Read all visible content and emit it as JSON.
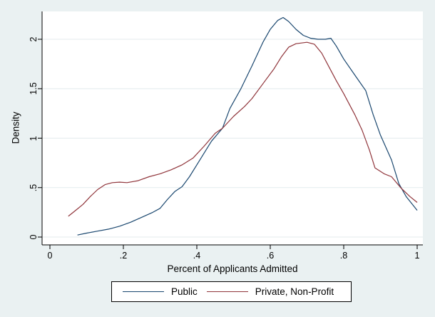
{
  "colors": {
    "background": "#eaf1f2",
    "plot_background": "#ffffff",
    "gridline": "#e3ebee",
    "axis": "#000000",
    "text": "#000000",
    "public_line": "#1a476f",
    "private_line": "#90353b"
  },
  "chart_data": {
    "type": "line",
    "title": "",
    "xlabel": "Percent of Applicants Admitted",
    "ylabel": "Density",
    "xlim": [
      0,
      1
    ],
    "ylim": [
      0,
      2.2
    ],
    "grid": true,
    "legend_position": "bottom",
    "x_ticks": [
      {
        "label": "0",
        "value": 0.0
      },
      {
        "label": ".2",
        "value": 0.2
      },
      {
        "label": ".4",
        "value": 0.4
      },
      {
        "label": ".6",
        "value": 0.6
      },
      {
        "label": ".8",
        "value": 0.8
      },
      {
        "label": "1",
        "value": 1.0
      }
    ],
    "y_ticks": [
      {
        "label": "0",
        "value": 0.0
      },
      {
        "label": ".5",
        "value": 0.5
      },
      {
        "label": "1",
        "value": 1.0
      },
      {
        "label": "1.5",
        "value": 1.5
      },
      {
        "label": "2",
        "value": 2.0
      }
    ],
    "series": [
      {
        "name": "Public",
        "color_key": "public_line",
        "points": [
          [
            0.075,
            0.02
          ],
          [
            0.1,
            0.04
          ],
          [
            0.13,
            0.06
          ],
          [
            0.16,
            0.08
          ],
          [
            0.19,
            0.11
          ],
          [
            0.22,
            0.15
          ],
          [
            0.25,
            0.2
          ],
          [
            0.28,
            0.25
          ],
          [
            0.3,
            0.29
          ],
          [
            0.32,
            0.38
          ],
          [
            0.34,
            0.46
          ],
          [
            0.36,
            0.51
          ],
          [
            0.38,
            0.61
          ],
          [
            0.4,
            0.73
          ],
          [
            0.42,
            0.85
          ],
          [
            0.44,
            0.97
          ],
          [
            0.47,
            1.1
          ],
          [
            0.49,
            1.3
          ],
          [
            0.52,
            1.5
          ],
          [
            0.55,
            1.73
          ],
          [
            0.58,
            1.97
          ],
          [
            0.6,
            2.1
          ],
          [
            0.62,
            2.19
          ],
          [
            0.635,
            2.22
          ],
          [
            0.65,
            2.18
          ],
          [
            0.67,
            2.1
          ],
          [
            0.69,
            2.04
          ],
          [
            0.71,
            2.01
          ],
          [
            0.73,
            2.0
          ],
          [
            0.75,
            2.0
          ],
          [
            0.765,
            2.01
          ],
          [
            0.78,
            1.93
          ],
          [
            0.8,
            1.8
          ],
          [
            0.83,
            1.64
          ],
          [
            0.86,
            1.48
          ],
          [
            0.88,
            1.24
          ],
          [
            0.9,
            1.03
          ],
          [
            0.93,
            0.78
          ],
          [
            0.95,
            0.54
          ],
          [
            0.97,
            0.41
          ],
          [
            1.0,
            0.27
          ]
        ]
      },
      {
        "name": "Private, Non-Profit",
        "color_key": "private_line",
        "points": [
          [
            0.05,
            0.21
          ],
          [
            0.07,
            0.27
          ],
          [
            0.09,
            0.33
          ],
          [
            0.11,
            0.41
          ],
          [
            0.13,
            0.48
          ],
          [
            0.15,
            0.53
          ],
          [
            0.17,
            0.55
          ],
          [
            0.19,
            0.555
          ],
          [
            0.21,
            0.55
          ],
          [
            0.24,
            0.57
          ],
          [
            0.27,
            0.61
          ],
          [
            0.3,
            0.64
          ],
          [
            0.33,
            0.68
          ],
          [
            0.36,
            0.73
          ],
          [
            0.39,
            0.8
          ],
          [
            0.42,
            0.92
          ],
          [
            0.45,
            1.05
          ],
          [
            0.47,
            1.1
          ],
          [
            0.5,
            1.22
          ],
          [
            0.53,
            1.32
          ],
          [
            0.55,
            1.4
          ],
          [
            0.58,
            1.55
          ],
          [
            0.61,
            1.7
          ],
          [
            0.63,
            1.82
          ],
          [
            0.65,
            1.92
          ],
          [
            0.67,
            1.955
          ],
          [
            0.7,
            1.97
          ],
          [
            0.72,
            1.95
          ],
          [
            0.74,
            1.86
          ],
          [
            0.76,
            1.72
          ],
          [
            0.78,
            1.58
          ],
          [
            0.8,
            1.45
          ],
          [
            0.83,
            1.24
          ],
          [
            0.85,
            1.08
          ],
          [
            0.87,
            0.88
          ],
          [
            0.885,
            0.7
          ],
          [
            0.91,
            0.64
          ],
          [
            0.93,
            0.61
          ],
          [
            0.955,
            0.5
          ],
          [
            0.98,
            0.41
          ],
          [
            1.0,
            0.35
          ]
        ]
      }
    ]
  },
  "legend": {
    "public_label": "Public",
    "private_label": "Private, Non-Profit"
  }
}
